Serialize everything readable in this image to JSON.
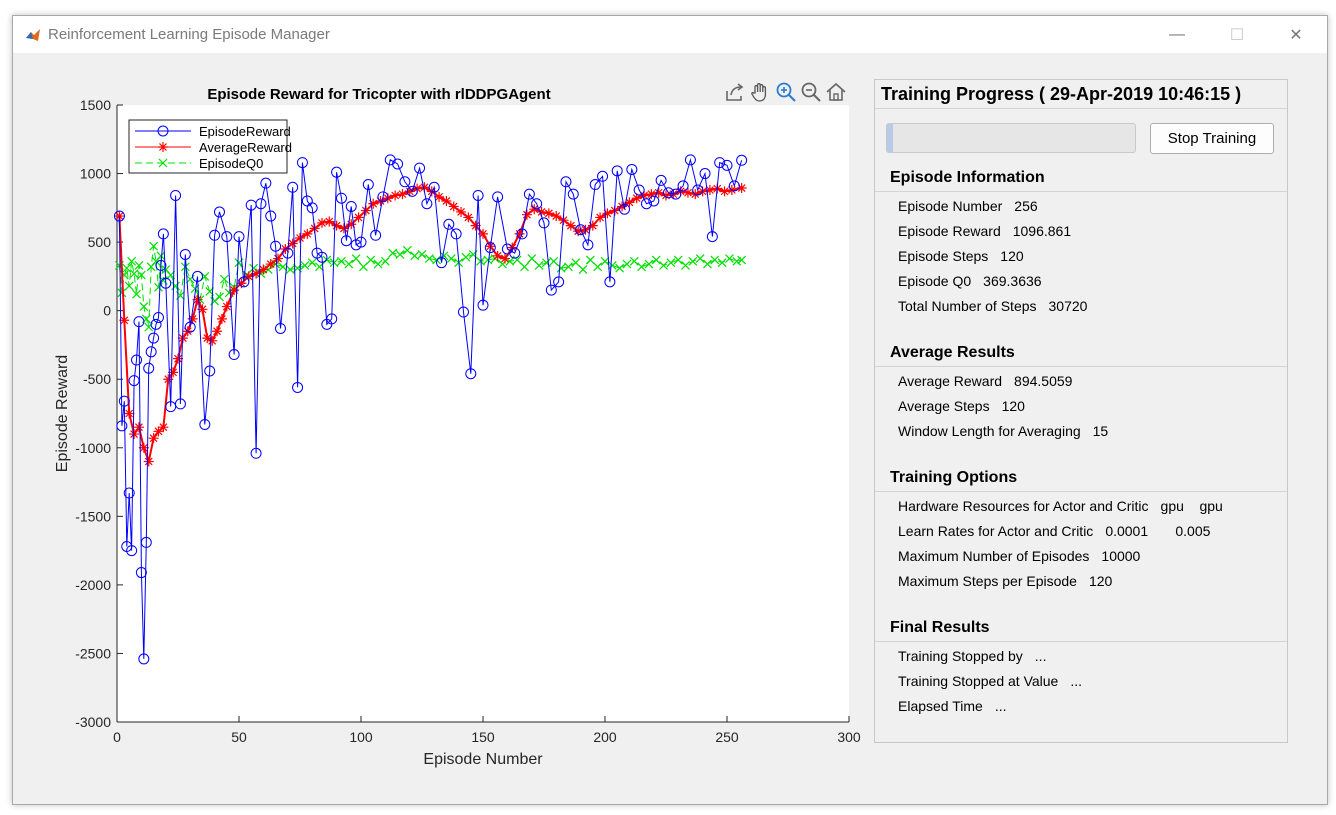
{
  "window": {
    "title": "Reinforcement Learning Episode Manager",
    "controls": {
      "minimize": "—",
      "maximize": "☐",
      "close": "✕"
    }
  },
  "axes_toolbar": [
    "export-icon",
    "pan-icon",
    "zoom-in-icon",
    "zoom-out-icon",
    "home-icon"
  ],
  "panel": {
    "title": "Training Progress ( 29-Apr-2019 10:46:15 )",
    "progress": 0.0256,
    "stop_label": "Stop Training",
    "episode_info": {
      "title": "Episode Information",
      "rows": [
        {
          "label": "Episode Number",
          "value": "256"
        },
        {
          "label": "Episode Reward",
          "value": "1096.861"
        },
        {
          "label": "Episode Steps",
          "value": "120"
        },
        {
          "label": "Episode Q0",
          "value": "369.3636"
        },
        {
          "label": "Total Number of Steps",
          "value": "30720"
        }
      ]
    },
    "average_results": {
      "title": "Average Results",
      "rows": [
        {
          "label": "Average Reward",
          "value": "894.5059"
        },
        {
          "label": "Average Steps",
          "value": "120"
        },
        {
          "label": "Window Length for Averaging",
          "value": "15"
        }
      ]
    },
    "training_options": {
      "title": "Training Options",
      "rows": [
        {
          "label": "Hardware Resources for Actor and Critic",
          "value": "gpu    gpu"
        },
        {
          "label": "Learn Rates for Actor and Critic",
          "value": "0.0001       0.005"
        },
        {
          "label": "Maximum Number of Episodes",
          "value": "10000"
        },
        {
          "label": "Maximum Steps per Episode",
          "value": "120"
        }
      ]
    },
    "final_results": {
      "title": "Final Results",
      "rows": [
        {
          "label": "Training Stopped by",
          "value": "..."
        },
        {
          "label": "Training Stopped at Value",
          "value": "..."
        },
        {
          "label": "Elapsed Time",
          "value": "..."
        }
      ]
    }
  },
  "chart_data": {
    "type": "line",
    "title": "Episode Reward for Tricopter with rlDDPGAgent",
    "xlabel": "Episode Number",
    "ylabel": "Episode Reward",
    "xlim": [
      0,
      300
    ],
    "ylim": [
      -3000,
      1500
    ],
    "xticks": [
      0,
      50,
      100,
      150,
      200,
      250,
      300
    ],
    "yticks": [
      1500,
      1000,
      500,
      0,
      -500,
      -1000,
      -1500,
      -2000,
      -2500,
      -3000
    ],
    "legend": "top-left",
    "series": [
      {
        "name": "EpisodeReward",
        "color": "#0000ff",
        "marker": "circle",
        "x": [
          1,
          2,
          3,
          4,
          5,
          6,
          7,
          8,
          9,
          10,
          11,
          12,
          13,
          14,
          15,
          16,
          17,
          18,
          19,
          20,
          22,
          24,
          26,
          28,
          30,
          33,
          36,
          38,
          40,
          42,
          45,
          48,
          50,
          52,
          55,
          57,
          59,
          61,
          63,
          65,
          67,
          70,
          72,
          74,
          76,
          78,
          80,
          82,
          84,
          86,
          88,
          90,
          92,
          94,
          96,
          98,
          100,
          103,
          106,
          109,
          112,
          115,
          118,
          121,
          124,
          127,
          130,
          133,
          136,
          139,
          142,
          145,
          148,
          150,
          153,
          156,
          160,
          163,
          166,
          169,
          172,
          175,
          178,
          181,
          184,
          187,
          190,
          193,
          196,
          199,
          202,
          205,
          208,
          211,
          214,
          217,
          220,
          223,
          226,
          229,
          232,
          235,
          238,
          241,
          244,
          247,
          250,
          253,
          256
        ],
        "y": [
          690,
          -840,
          -660,
          -1720,
          -1330,
          -1750,
          -510,
          -360,
          -80,
          -1910,
          -2540,
          -1690,
          -420,
          -300,
          -200,
          -100,
          -50,
          330,
          560,
          200,
          -700,
          840,
          -680,
          410,
          -120,
          250,
          -830,
          -440,
          550,
          720,
          540,
          -320,
          540,
          210,
          770,
          -1040,
          780,
          930,
          690,
          470,
          -130,
          420,
          900,
          -560,
          1080,
          800,
          750,
          420,
          390,
          -100,
          -60,
          1010,
          820,
          510,
          760,
          480,
          500,
          920,
          550,
          830,
          1100,
          1070,
          940,
          870,
          1040,
          780,
          900,
          350,
          630,
          560,
          -10,
          -460,
          840,
          40,
          460,
          830,
          450,
          420,
          560,
          850,
          780,
          640,
          150,
          210,
          940,
          850,
          590,
          480,
          920,
          980,
          210,
          1020,
          740,
          1030,
          880,
          780,
          800,
          950,
          860,
          850,
          910,
          1100,
          880,
          1000,
          540,
          1080,
          1060,
          910,
          1096.861
        ]
      },
      {
        "name": "AverageReward",
        "color": "#ff0000",
        "marker": "asterisk",
        "x": [
          1,
          3,
          5,
          7,
          9,
          11,
          13,
          15,
          17,
          19,
          21,
          23,
          25,
          27,
          29,
          31,
          33,
          35,
          37,
          39,
          41,
          43,
          45,
          48,
          51,
          54,
          57,
          60,
          63,
          66,
          69,
          72,
          75,
          78,
          81,
          84,
          87,
          90,
          93,
          96,
          99,
          102,
          105,
          108,
          111,
          114,
          117,
          120,
          123,
          126,
          129,
          132,
          135,
          138,
          141,
          144,
          147,
          150,
          153,
          156,
          159,
          162,
          165,
          168,
          171,
          174,
          177,
          180,
          183,
          186,
          189,
          192,
          195,
          198,
          201,
          204,
          207,
          210,
          213,
          216,
          219,
          222,
          225,
          228,
          231,
          234,
          237,
          240,
          243,
          246,
          249,
          252,
          256
        ],
        "y": [
          690,
          -70,
          -750,
          -900,
          -850,
          -1000,
          -1100,
          -930,
          -880,
          -850,
          -500,
          -450,
          -350,
          -200,
          -150,
          -60,
          80,
          10,
          -200,
          -220,
          -150,
          -60,
          30,
          150,
          200,
          250,
          270,
          300,
          340,
          380,
          450,
          490,
          530,
          560,
          600,
          640,
          650,
          620,
          600,
          630,
          680,
          730,
          780,
          800,
          820,
          840,
          850,
          870,
          890,
          900,
          870,
          830,
          800,
          760,
          720,
          680,
          620,
          560,
          470,
          400,
          380,
          460,
          560,
          700,
          740,
          720,
          710,
          690,
          660,
          620,
          580,
          590,
          620,
          680,
          710,
          730,
          760,
          790,
          820,
          840,
          850,
          860,
          840,
          850,
          870,
          860,
          850,
          870,
          880,
          890,
          870,
          880,
          894.5059
        ]
      },
      {
        "name": "EpisodeQ0",
        "color": "#00e000",
        "marker": "x",
        "x": [
          1,
          2,
          3,
          4,
          5,
          6,
          7,
          8,
          9,
          10,
          11,
          12,
          13,
          14,
          15,
          16,
          17,
          18,
          19,
          20,
          22,
          24,
          26,
          28,
          30,
          32,
          34,
          36,
          38,
          40,
          42,
          44,
          46,
          48,
          50,
          53,
          56,
          59,
          62,
          65,
          68,
          71,
          74,
          77,
          80,
          83,
          86,
          89,
          92,
          95,
          98,
          101,
          104,
          107,
          110,
          113,
          116,
          119,
          122,
          125,
          128,
          131,
          134,
          137,
          140,
          143,
          146,
          149,
          152,
          155,
          158,
          161,
          164,
          167,
          170,
          173,
          176,
          179,
          182,
          185,
          188,
          191,
          194,
          197,
          200,
          203,
          206,
          209,
          212,
          215,
          218,
          221,
          224,
          227,
          230,
          233,
          236,
          239,
          242,
          245,
          248,
          251,
          254,
          256
        ],
        "y": [
          330,
          130,
          260,
          310,
          180,
          360,
          270,
          120,
          330,
          260,
          30,
          -60,
          -120,
          320,
          470,
          360,
          170,
          400,
          220,
          300,
          260,
          180,
          110,
          320,
          230,
          160,
          80,
          250,
          140,
          70,
          100,
          230,
          130,
          170,
          350,
          260,
          310,
          270,
          300,
          340,
          320,
          300,
          310,
          330,
          350,
          320,
          370,
          350,
          360,
          340,
          380,
          320,
          370,
          340,
          360,
          420,
          410,
          440,
          400,
          410,
          380,
          370,
          400,
          380,
          350,
          390,
          410,
          360,
          370,
          380,
          340,
          360,
          370,
          320,
          380,
          330,
          350,
          360,
          310,
          320,
          350,
          300,
          370,
          320,
          360,
          330,
          310,
          340,
          360,
          320,
          340,
          370,
          330,
          350,
          370,
          330,
          360,
          380,
          340,
          370,
          350,
          380,
          360,
          369.3636
        ]
      }
    ]
  }
}
